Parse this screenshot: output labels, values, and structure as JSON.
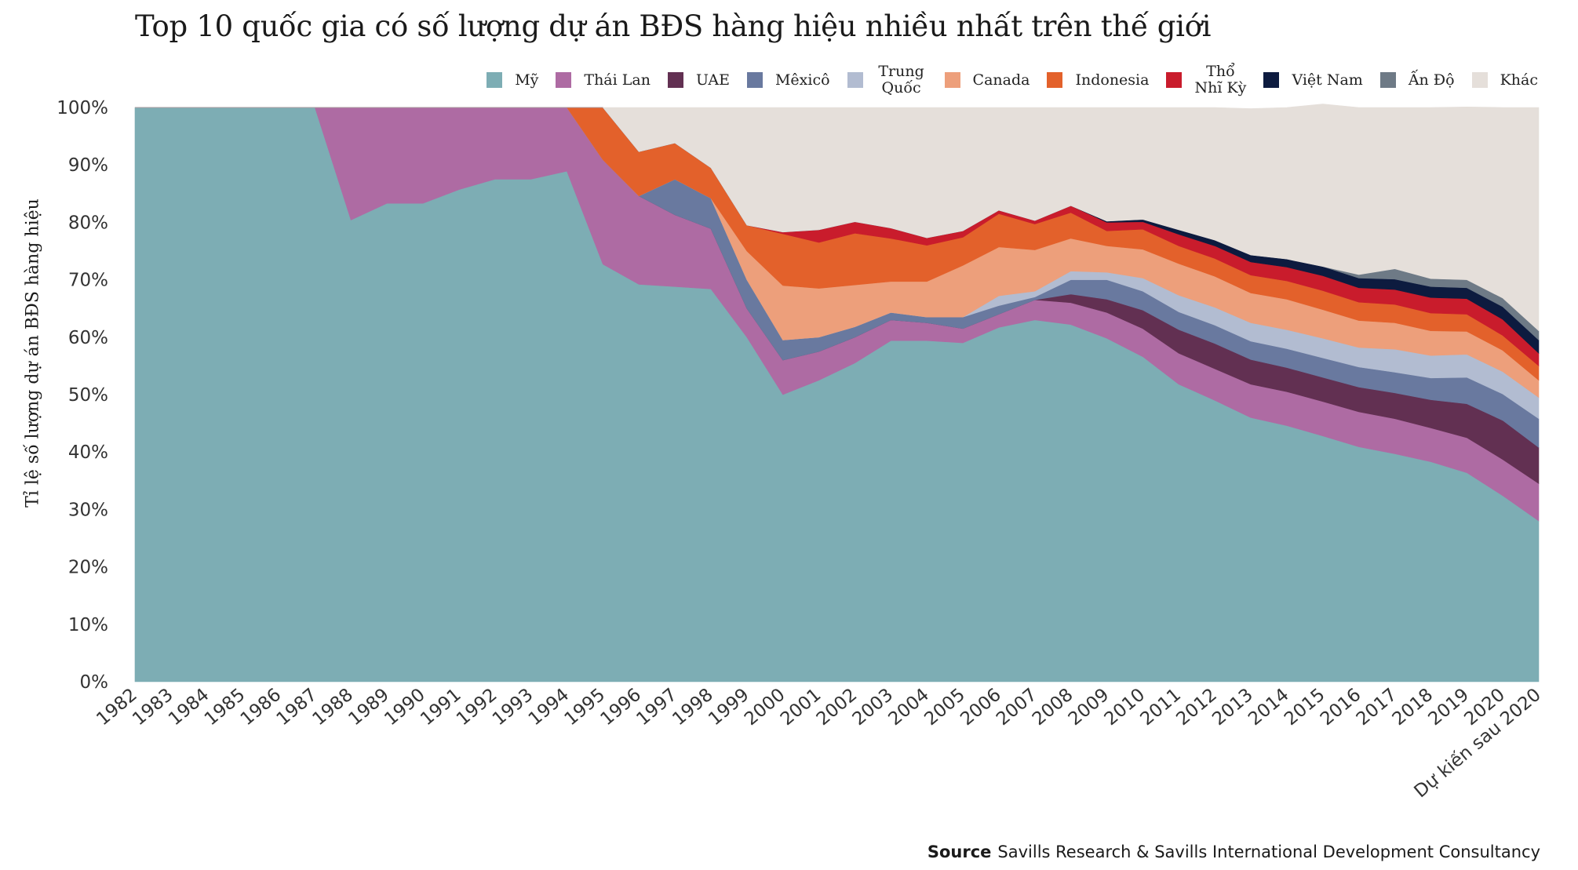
{
  "chart_data": {
    "type": "area",
    "stacked": true,
    "normalized": true,
    "title": "Top 10 quốc gia có số lượng dự án BĐS hàng hiệu nhiều nhất trên thế giới",
    "ylabel": "Tỉ lệ số lượng dự án BĐS hàng hiệu",
    "xlabel": "",
    "ylim": [
      0,
      100
    ],
    "yticks": [
      "0%",
      "10%",
      "20%",
      "30%",
      "40%",
      "50%",
      "60%",
      "70%",
      "80%",
      "90%",
      "100%"
    ],
    "legend_position": "top-right",
    "categories": [
      "1982",
      "1983",
      "1984",
      "1985",
      "1986",
      "1987",
      "1988",
      "1989",
      "1990",
      "1991",
      "1992",
      "1993",
      "1994",
      "1995",
      "1996",
      "1997",
      "1998",
      "1999",
      "2000",
      "2001",
      "2002",
      "2003",
      "2004",
      "2005",
      "2006",
      "2007",
      "2008",
      "2009",
      "2010",
      "2011",
      "2012",
      "2013",
      "2014",
      "2015",
      "2016",
      "2017",
      "2018",
      "2019",
      "2020",
      "Dự kiến sau 2020"
    ],
    "series": [
      {
        "name": "Mỹ",
        "color": "#7dadb4",
        "values": [
          100,
          100,
          100,
          100,
          100,
          100,
          80.4,
          83.3,
          83.3,
          85.7,
          87.5,
          87.5,
          88.9,
          72.7,
          69.2,
          68.8,
          68.4,
          60,
          50,
          52.5,
          55.5,
          59.4,
          59.4,
          59,
          61.7,
          63,
          62.2,
          59.8,
          56.6,
          51.8,
          49,
          46,
          44.6,
          42.8,
          40.9,
          39.7,
          38.3,
          36.4,
          32.4,
          28
        ]
      },
      {
        "name": "Thái Lan",
        "color": "#ae6ba3",
        "values": [
          0,
          0,
          0,
          0,
          0,
          0,
          19.6,
          16.7,
          16.7,
          14.3,
          12.5,
          12.5,
          11.1,
          18.2,
          15.4,
          12.5,
          10.5,
          5,
          6,
          5,
          4.5,
          3.6,
          3.1,
          2.5,
          2.3,
          3.5,
          3.8,
          4.5,
          4.9,
          5.4,
          5.5,
          5.8,
          5.9,
          6,
          6.1,
          6.1,
          5.9,
          6.1,
          6.3,
          6.5
        ]
      },
      {
        "name": "UAE",
        "color": "#623052",
        "values": [
          0,
          0,
          0,
          0,
          0,
          0,
          0,
          0,
          0,
          0,
          0,
          0,
          0,
          0,
          0,
          0,
          0,
          0,
          0,
          0,
          0,
          0,
          0,
          0,
          0,
          0,
          1.5,
          2.3,
          3.2,
          4.1,
          4.4,
          4.3,
          4.2,
          4.2,
          4.3,
          4.5,
          4.9,
          5.9,
          6.8,
          6.3
        ]
      },
      {
        "name": "Mêxicô",
        "color": "#69799f",
        "values": [
          0,
          0,
          0,
          0,
          0,
          0,
          0,
          0,
          0,
          0,
          0,
          0,
          0,
          0,
          0,
          6.2,
          5.3,
          5,
          3.5,
          2.5,
          1.8,
          1.3,
          1,
          2,
          1.5,
          0.5,
          2.5,
          3.4,
          3.3,
          3.1,
          3.2,
          3.2,
          3.3,
          3.4,
          3.5,
          3.6,
          3.8,
          4.6,
          4.6,
          5
        ]
      },
      {
        "name": "Trung Quốc",
        "color": "#b2bcd1",
        "values": [
          0,
          0,
          0,
          0,
          0,
          0,
          0,
          0,
          0,
          0,
          0,
          0,
          0,
          0,
          0,
          0,
          0,
          0,
          0,
          0,
          0,
          0,
          0,
          0,
          1.7,
          1,
          1.5,
          1.3,
          2.3,
          2.9,
          3.1,
          3.2,
          3.3,
          3.4,
          3.4,
          4,
          3.9,
          4,
          3.9,
          3.7
        ]
      },
      {
        "name": "Canada",
        "color": "#ed9f7b",
        "values": [
          0,
          0,
          0,
          0,
          0,
          0,
          0,
          0,
          0,
          0,
          0,
          0,
          0,
          0,
          0,
          0,
          0,
          5,
          9.5,
          8.5,
          7.3,
          5.4,
          6.2,
          9,
          8.5,
          7.2,
          5.7,
          4.6,
          5,
          5.5,
          5.4,
          5.2,
          5.3,
          5,
          4.7,
          4.6,
          4.3,
          4,
          3.7,
          3
        ]
      },
      {
        "name": "Indonesia",
        "color": "#e3612b",
        "values": [
          0,
          0,
          0,
          0,
          0,
          0,
          0,
          0,
          0,
          0,
          0,
          0,
          0,
          9.1,
          7.7,
          6.3,
          5.3,
          4.5,
          9,
          8,
          9,
          7.5,
          6.3,
          4.9,
          5.8,
          4.5,
          4.5,
          2.6,
          3.5,
          3.1,
          3.1,
          3.1,
          3.2,
          3.3,
          3.2,
          3.2,
          3.1,
          3,
          2.6,
          2.5
        ]
      },
      {
        "name": "Thổ Nhĩ Kỳ",
        "color": "#c91c2c",
        "values": [
          0,
          0,
          0,
          0,
          0,
          0,
          0,
          0,
          0,
          0,
          0,
          0,
          0,
          0,
          0,
          0,
          0,
          0,
          0.3,
          2.2,
          2,
          1.8,
          1.3,
          1.1,
          0.6,
          0.6,
          1.2,
          1.5,
          1.3,
          2,
          2.2,
          2.3,
          2.4,
          2.6,
          2.5,
          2.6,
          2.7,
          2.7,
          2.8,
          2.2
        ]
      },
      {
        "name": "Việt Nam",
        "color": "#0d1b3f",
        "values": [
          0,
          0,
          0,
          0,
          0,
          0,
          0,
          0,
          0,
          0,
          0,
          0,
          0,
          0,
          0,
          0,
          0,
          0,
          0,
          0,
          0,
          0,
          0,
          0,
          0,
          0,
          0,
          0.2,
          0.4,
          0.8,
          1,
          1.2,
          1.4,
          1.6,
          1.7,
          1.8,
          1.9,
          1.9,
          2.2,
          2.3
        ]
      },
      {
        "name": "Ấn Độ",
        "color": "#6e7a86",
        "values": [
          0,
          0,
          0,
          0,
          0,
          0,
          0,
          0,
          0,
          0,
          0,
          0,
          0,
          0,
          0,
          0,
          0,
          0,
          0,
          0,
          0,
          0,
          0,
          0,
          0,
          0,
          0,
          0,
          0,
          0,
          0,
          0,
          0,
          0,
          0.6,
          1.8,
          1.4,
          1.4,
          1.5,
          1.6
        ]
      },
      {
        "name": "Khác",
        "color": "#e5dfda",
        "values": [
          0,
          0,
          0,
          0,
          0,
          0,
          0,
          0,
          0,
          0,
          0,
          0,
          0,
          0,
          7.7,
          6.2,
          10.5,
          20.5,
          21.7,
          21.3,
          19.9,
          21,
          22.7,
          21.5,
          17.9,
          19.7,
          17.1,
          19.8,
          19.5,
          21.3,
          23.1,
          25.5,
          26.4,
          28.3,
          29.1,
          28.1,
          29.8,
          30.1,
          33.2,
          38.9
        ]
      }
    ],
    "source_label": "Source",
    "source_text": "Savills Research & Savills International Development Consultancy"
  }
}
